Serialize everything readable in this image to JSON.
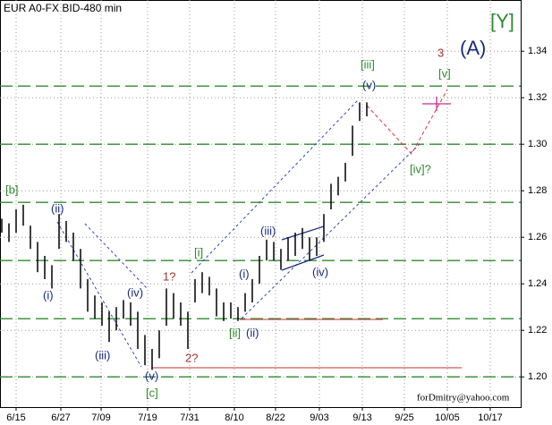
{
  "chart_data": {
    "type": "ohlc",
    "title": "EUR A0-FX BID-480 min",
    "x": [
      0.5,
      2.5,
      4.5,
      6.5,
      8.5,
      10.5,
      12.5,
      14.5,
      16.5,
      18.5,
      20.5,
      22.5,
      24.5,
      26.5,
      28.5,
      30.5,
      32.5,
      34.5,
      36.5,
      38.5,
      40.5,
      42.5,
      44.5,
      46.5,
      48.5,
      50.5,
      52.5,
      54.5,
      56.5,
      58.5,
      60.5,
      62.5,
      64.5,
      66.5,
      68.5,
      70.5,
      72.5,
      74.5,
      76.5,
      78.5,
      80.5,
      82.5,
      84.5,
      86.5,
      88.5,
      90.5,
      92.5,
      94.5,
      96.5,
      98.5,
      100.5,
      102.5
    ],
    "high": [
      1.268,
      1.266,
      1.272,
      1.274,
      1.265,
      1.258,
      1.252,
      1.248,
      1.27,
      1.267,
      1.262,
      1.255,
      1.242,
      1.235,
      1.232,
      1.228,
      1.23,
      1.233,
      1.232,
      1.228,
      1.218,
      1.212,
      1.22,
      1.238,
      1.236,
      1.232,
      1.228,
      1.242,
      1.245,
      1.243,
      1.238,
      1.232,
      1.232,
      1.23,
      1.236,
      1.242,
      1.252,
      1.259,
      1.258,
      1.255,
      1.26,
      1.262,
      1.264,
      1.26,
      1.26,
      1.27,
      1.283,
      1.286,
      1.292,
      1.308,
      1.318,
      1.318
    ],
    "low": [
      1.262,
      1.258,
      1.262,
      1.265,
      1.255,
      1.245,
      1.242,
      1.238,
      1.255,
      1.258,
      1.25,
      1.238,
      1.228,
      1.225,
      1.222,
      1.215,
      1.22,
      1.225,
      1.222,
      1.212,
      1.205,
      1.203,
      1.208,
      1.222,
      1.225,
      1.222,
      1.212,
      1.232,
      1.236,
      1.235,
      1.226,
      1.224,
      1.225,
      1.224,
      1.228,
      1.232,
      1.24,
      1.25,
      1.25,
      1.246,
      1.25,
      1.252,
      1.255,
      1.25,
      1.252,
      1.258,
      1.272,
      1.278,
      1.284,
      1.295,
      1.31,
      1.312
    ],
    "color": "#000000",
    "xlim": [
      0,
      145.5
    ],
    "xticks": [
      {
        "value": 4.5,
        "label": "6/15"
      },
      {
        "value": 17,
        "label": "6/27"
      },
      {
        "value": 28.25,
        "label": "7/09"
      },
      {
        "value": 41.25,
        "label": "7/19"
      },
      {
        "value": 53,
        "label": "7/31"
      },
      {
        "value": 65.5,
        "label": "8/10"
      },
      {
        "value": 77,
        "label": "8/22"
      },
      {
        "value": 89.25,
        "label": "9/03"
      },
      {
        "value": 101.25,
        "label": "9/13"
      },
      {
        "value": 113,
        "label": "9/25"
      },
      {
        "value": 125,
        "label": "10/05"
      },
      {
        "value": 137,
        "label": "10/17"
      }
    ],
    "ylim": [
      1.187,
      1.362
    ],
    "yticks": [
      {
        "value": 1.2,
        "label": "1.20"
      },
      1.22,
      1.24,
      1.26,
      1.28,
      {
        "value": 1.3,
        "label": "1.30"
      },
      1.32,
      1.34
    ],
    "levels": [
      1.2,
      1.225,
      1.25,
      1.275,
      1.3,
      1.325
    ],
    "level_color": "#2e8b2e",
    "grid": true,
    "annotations": [
      "[b]",
      "(ii)",
      "(i)",
      "(iii)",
      "(iv)",
      "(v)",
      "[c]",
      "1?",
      "2?",
      "[i]",
      "[ii]",
      "(ii)",
      "(i)",
      "(iii)",
      "(iv)",
      "[iii]",
      "(v)",
      "3",
      "(A)",
      "[Y]",
      "[v]",
      "[iv]?"
    ],
    "credit": "forDmitry@yahoo.com"
  }
}
